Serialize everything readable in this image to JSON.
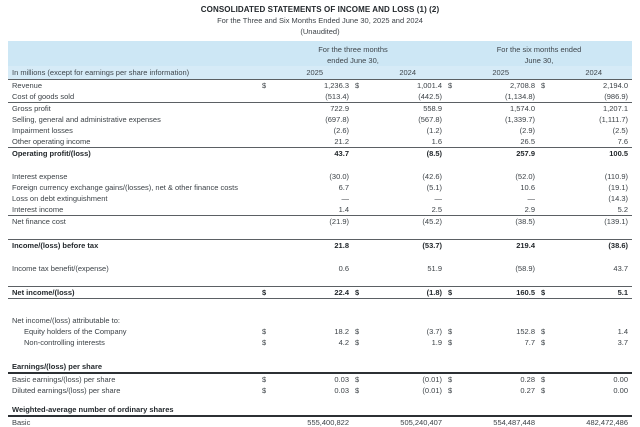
{
  "page": {
    "title": "CONSOLIDATED STATEMENTS OF INCOME AND LOSS (1) (2)",
    "subtitle": "For the Three and Six Months Ended June 30, 2025 and 2024",
    "note": "(Unaudited)"
  },
  "table": {
    "unit_label": "In millions (except for earnings per share information)",
    "column_groups": [
      {
        "line1": "For the three months",
        "line2": "ended June 30,"
      },
      {
        "line1": "For the six months ended",
        "line2": "June 30,"
      }
    ],
    "years": [
      "2025",
      "2024",
      "2025",
      "2024"
    ],
    "rows": [
      {
        "label": "Revenue",
        "dollar": true,
        "values": [
          "1,236.3",
          "1,001.4",
          "2,708.8",
          "2,194.0"
        ],
        "classes": "lt"
      },
      {
        "label": "Cost of goods sold",
        "values": [
          "(513.4)",
          "(442.5)",
          "(1,134.8)",
          "(986.9)"
        ]
      },
      {
        "label": "Gross profit",
        "values": [
          "722.9",
          "558.9",
          "1,574.0",
          "1,207.1"
        ],
        "classes": "lt"
      },
      {
        "label": "Selling, general and administrative expenses",
        "values": [
          "(697.8)",
          "(567.8)",
          "(1,339.7)",
          "(1,111.7)"
        ]
      },
      {
        "label": "Impairment losses",
        "values": [
          "(2.6)",
          "(1.2)",
          "(2.9)",
          "(2.5)"
        ]
      },
      {
        "label": "Other operating income",
        "values": [
          "21.2",
          "1.6",
          "26.5",
          "7.6"
        ]
      },
      {
        "label": "Operating profit/(loss)",
        "values": [
          "43.7",
          "(8.5)",
          "257.9",
          "100.5"
        ],
        "classes": "bold lt"
      },
      {
        "type": "spacer",
        "height": 12
      },
      {
        "label": "Interest expense",
        "values": [
          "(30.0)",
          "(42.6)",
          "(52.0)",
          "(110.9)"
        ]
      },
      {
        "label": "Foreign currency exchange gains/(losses), net & other finance costs",
        "values": [
          "6.7",
          "(5.1)",
          "10.6",
          "(19.1)"
        ]
      },
      {
        "label": "Loss on debt extinguishment",
        "values": [
          "—",
          "—",
          "—",
          "(14.3)"
        ]
      },
      {
        "label": "Interest income",
        "values": [
          "1.4",
          "2.5",
          "2.9",
          "5.2"
        ]
      },
      {
        "label": "Net finance cost",
        "values": [
          "(21.9)",
          "(45.2)",
          "(38.5)",
          "(139.1)"
        ],
        "classes": "lt"
      },
      {
        "type": "spacer",
        "height": 12
      },
      {
        "label": "Income/(loss) before tax",
        "values": [
          "21.8",
          "(53.7)",
          "219.4",
          "(38.6)"
        ],
        "classes": "bold lt"
      },
      {
        "type": "spacer",
        "height": 12
      },
      {
        "label": "Income tax benefit/(expense)",
        "values": [
          "0.6",
          "51.9",
          "(58.9)",
          "43.7"
        ]
      },
      {
        "type": "spacer",
        "height": 12
      },
      {
        "label": "Net income/(loss)",
        "dollar": true,
        "values": [
          "22.4",
          "(1.8)",
          "160.5",
          "5.1"
        ],
        "classes": "bold lt lb"
      },
      {
        "type": "spacer",
        "height": 16
      },
      {
        "label": "Net income/(loss) attributable to:",
        "values": null
      },
      {
        "label": "Equity holders of the Company",
        "indent": true,
        "dollar": true,
        "values": [
          "18.2",
          "(3.7)",
          "152.8",
          "1.4"
        ]
      },
      {
        "label": "Non-controlling interests",
        "indent": true,
        "dollar": true,
        "values": [
          "4.2",
          "1.9",
          "7.7",
          "3.7"
        ]
      },
      {
        "type": "spacer",
        "height": 13
      },
      {
        "label": "Earnings/(loss) per share",
        "values": null,
        "classes": "bold thick"
      },
      {
        "label": "Basic earnings/(loss) per share",
        "dollar": true,
        "values": [
          "0.03",
          "(0.01)",
          "0.28",
          "0.00"
        ]
      },
      {
        "label": "Diluted earnings/(loss) per share",
        "dollar": true,
        "values": [
          "0.03",
          "(0.01)",
          "0.27",
          "0.00"
        ]
      },
      {
        "type": "spacer",
        "height": 8
      },
      {
        "label": "Weighted-average number of ordinary shares",
        "values": null,
        "classes": "bold thick"
      },
      {
        "label": "Basic",
        "values": [
          "555,400,822",
          "505,240,407",
          "554,487,448",
          "482,472,486"
        ]
      }
    ]
  }
}
